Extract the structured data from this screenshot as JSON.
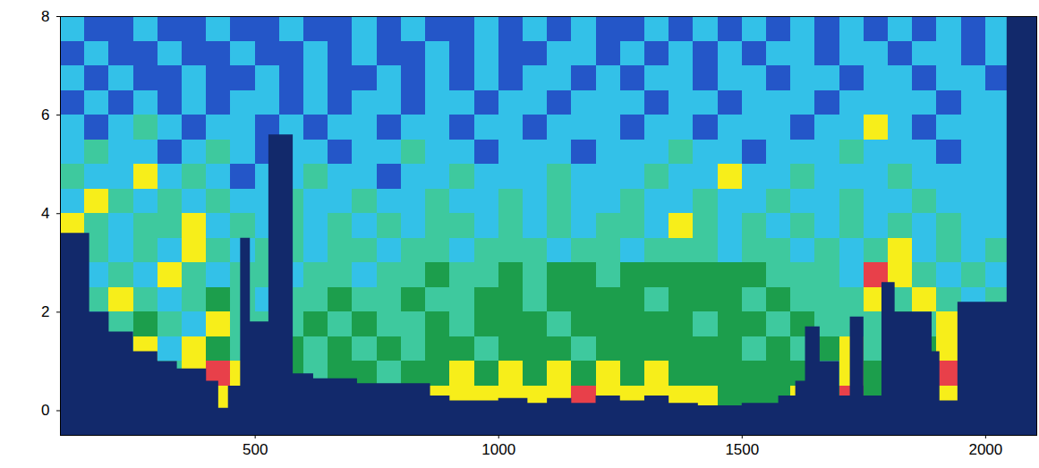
{
  "chart_data": {
    "type": "heatmap",
    "xlim": [
      100,
      2105
    ],
    "ylim": [
      -0.5,
      8
    ],
    "xticks": [
      500,
      1000,
      1500,
      2000
    ],
    "yticks": [
      0,
      2,
      4,
      6,
      8
    ],
    "grid": false,
    "colors": [
      "#12296b",
      "#2456c8",
      "#33c1e8",
      "#3ec99e",
      "#1c9e4c",
      "#f7ee1a",
      "#e8404a"
    ],
    "x_edges": [
      100,
      150,
      200,
      250,
      300,
      350,
      400,
      450,
      500,
      550,
      600,
      650,
      700,
      750,
      800,
      850,
      900,
      950,
      1000,
      1050,
      1100,
      1150,
      1200,
      1250,
      1300,
      1350,
      1400,
      1450,
      1500,
      1550,
      1600,
      1650,
      1700,
      1750,
      1800,
      1850,
      1900,
      1950,
      2000,
      2050,
      2100
    ],
    "y_edges": [
      -0.5,
      0,
      0.5,
      1,
      1.5,
      2,
      2.5,
      3,
      3.5,
      4,
      4.5,
      5,
      5.5,
      6,
      6.5,
      7,
      7.5,
      8
    ],
    "z": [
      [
        0,
        0,
        0,
        0,
        0,
        0,
        0,
        0,
        0,
        0,
        0,
        0,
        0,
        0,
        0,
        0,
        0,
        0,
        0,
        0,
        0,
        0,
        0,
        0,
        0,
        0,
        0,
        0,
        0,
        0,
        0,
        0,
        0,
        0,
        0,
        0,
        0,
        0,
        0,
        0
      ],
      [
        0,
        0,
        0,
        0,
        4,
        5,
        5,
        6,
        4,
        3,
        4,
        4,
        3,
        4,
        4,
        5,
        5,
        5,
        5,
        5,
        5,
        6,
        5,
        5,
        5,
        5,
        5,
        4,
        4,
        4,
        5,
        4,
        6,
        4,
        4,
        4,
        5,
        3,
        4,
        0
      ],
      [
        0,
        0,
        0,
        0,
        3,
        5,
        6,
        5,
        3,
        4,
        3,
        4,
        4,
        3,
        4,
        4,
        5,
        4,
        5,
        4,
        5,
        4,
        5,
        4,
        5,
        4,
        4,
        4,
        4,
        4,
        4,
        3,
        5,
        4,
        3,
        3,
        6,
        4,
        3,
        0
      ],
      [
        0,
        0,
        3,
        5,
        2,
        5,
        4,
        3,
        3,
        4,
        3,
        4,
        3,
        4,
        3,
        4,
        4,
        3,
        4,
        4,
        4,
        3,
        4,
        4,
        4,
        4,
        4,
        4,
        3,
        4,
        3,
        4,
        5,
        3,
        3,
        4,
        5,
        3,
        3,
        0
      ],
      [
        0,
        2,
        3,
        4,
        3,
        2,
        5,
        3,
        3,
        3,
        4,
        3,
        4,
        3,
        3,
        4,
        3,
        4,
        4,
        4,
        3,
        4,
        4,
        4,
        4,
        4,
        3,
        4,
        4,
        3,
        4,
        3,
        3,
        3,
        4,
        3,
        5,
        3,
        2,
        0
      ],
      [
        0,
        3,
        5,
        3,
        2,
        3,
        4,
        3,
        2,
        3,
        3,
        4,
        3,
        3,
        4,
        3,
        3,
        4,
        4,
        3,
        4,
        4,
        4,
        4,
        3,
        4,
        4,
        4,
        3,
        4,
        3,
        3,
        3,
        5,
        3,
        5,
        3,
        2,
        3,
        0
      ],
      [
        0,
        2,
        3,
        2,
        5,
        3,
        2,
        3,
        3,
        2,
        3,
        3,
        2,
        3,
        3,
        4,
        3,
        3,
        4,
        3,
        4,
        4,
        3,
        4,
        4,
        4,
        4,
        4,
        4,
        3,
        3,
        3,
        2,
        6,
        5,
        3,
        2,
        3,
        2,
        0
      ],
      [
        0,
        3,
        2,
        3,
        2,
        5,
        3,
        2,
        3,
        3,
        2,
        3,
        3,
        2,
        3,
        3,
        2,
        3,
        3,
        3,
        2,
        3,
        3,
        2,
        3,
        3,
        3,
        2,
        3,
        3,
        2,
        3,
        2,
        3,
        5,
        2,
        3,
        2,
        3,
        0
      ],
      [
        5,
        3,
        2,
        3,
        3,
        5,
        2,
        3,
        2,
        3,
        2,
        3,
        2,
        3,
        2,
        3,
        3,
        2,
        3,
        2,
        3,
        2,
        3,
        3,
        2,
        5,
        3,
        2,
        3,
        2,
        3,
        2,
        3,
        2,
        3,
        2,
        3,
        2,
        2,
        0
      ],
      [
        2,
        5,
        3,
        2,
        3,
        2,
        3,
        2,
        2,
        3,
        2,
        2,
        3,
        2,
        2,
        3,
        2,
        2,
        3,
        2,
        3,
        2,
        2,
        3,
        2,
        2,
        3,
        2,
        2,
        3,
        2,
        2,
        3,
        2,
        2,
        3,
        2,
        2,
        2,
        0
      ],
      [
        3,
        2,
        2,
        5,
        2,
        3,
        2,
        1,
        2,
        2,
        3,
        2,
        2,
        1,
        2,
        2,
        3,
        2,
        2,
        2,
        3,
        2,
        2,
        2,
        3,
        2,
        2,
        5,
        2,
        2,
        3,
        2,
        2,
        2,
        3,
        2,
        2,
        2,
        2,
        0
      ],
      [
        2,
        3,
        2,
        2,
        1,
        2,
        3,
        2,
        1,
        2,
        2,
        1,
        2,
        2,
        3,
        2,
        2,
        1,
        2,
        2,
        2,
        1,
        2,
        2,
        2,
        3,
        2,
        2,
        1,
        2,
        2,
        2,
        3,
        2,
        2,
        2,
        1,
        2,
        2,
        0
      ],
      [
        2,
        1,
        2,
        3,
        2,
        1,
        2,
        2,
        1,
        2,
        1,
        2,
        2,
        1,
        2,
        2,
        1,
        2,
        2,
        1,
        2,
        2,
        2,
        1,
        2,
        2,
        1,
        2,
        2,
        2,
        1,
        2,
        2,
        5,
        2,
        1,
        2,
        2,
        2,
        0
      ],
      [
        1,
        2,
        1,
        2,
        1,
        2,
        1,
        2,
        2,
        1,
        2,
        1,
        2,
        2,
        1,
        2,
        2,
        1,
        2,
        2,
        1,
        2,
        2,
        2,
        1,
        2,
        2,
        1,
        2,
        2,
        2,
        1,
        2,
        2,
        2,
        2,
        1,
        2,
        2,
        0
      ],
      [
        2,
        1,
        2,
        1,
        1,
        2,
        1,
        1,
        2,
        1,
        2,
        1,
        1,
        2,
        1,
        2,
        1,
        2,
        1,
        2,
        2,
        1,
        2,
        1,
        2,
        2,
        1,
        2,
        2,
        1,
        2,
        2,
        1,
        2,
        2,
        1,
        2,
        2,
        1,
        0
      ],
      [
        1,
        2,
        1,
        1,
        2,
        1,
        1,
        2,
        1,
        1,
        2,
        1,
        2,
        1,
        1,
        2,
        1,
        2,
        1,
        1,
        2,
        2,
        1,
        2,
        1,
        2,
        1,
        2,
        1,
        2,
        2,
        1,
        2,
        2,
        1,
        2,
        2,
        1,
        2,
        0
      ],
      [
        2,
        1,
        1,
        2,
        1,
        1,
        2,
        1,
        1,
        2,
        1,
        1,
        2,
        1,
        2,
        1,
        1,
        2,
        1,
        2,
        1,
        2,
        1,
        1,
        2,
        1,
        2,
        1,
        2,
        1,
        2,
        1,
        2,
        1,
        2,
        1,
        2,
        1,
        2,
        0
      ]
    ],
    "bottom": {
      "x": [
        100,
        160,
        200,
        250,
        300,
        340,
        400,
        425,
        445,
        470,
        490,
        528,
        578,
        620,
        710,
        860,
        900,
        1000,
        1060,
        1100,
        1150,
        1200,
        1250,
        1300,
        1350,
        1410,
        1500,
        1575,
        1610,
        1630,
        1660,
        1700,
        1722,
        1750,
        1787,
        1814,
        1890,
        1906,
        1943,
        2044,
        2105
      ],
      "depth": [
        3.6,
        2.0,
        1.6,
        1.2,
        1.0,
        0.85,
        0.6,
        0.05,
        0.5,
        3.5,
        1.8,
        5.6,
        0.75,
        0.65,
        0.55,
        0.3,
        0.2,
        0.25,
        0.15,
        0.25,
        0.15,
        0.3,
        0.2,
        0.3,
        0.15,
        0.1,
        0.15,
        0.3,
        0.6,
        1.7,
        1.0,
        0.3,
        1.9,
        0.3,
        2.6,
        2.0,
        1.2,
        0.2,
        2.2,
        8,
        8
      ]
    }
  }
}
